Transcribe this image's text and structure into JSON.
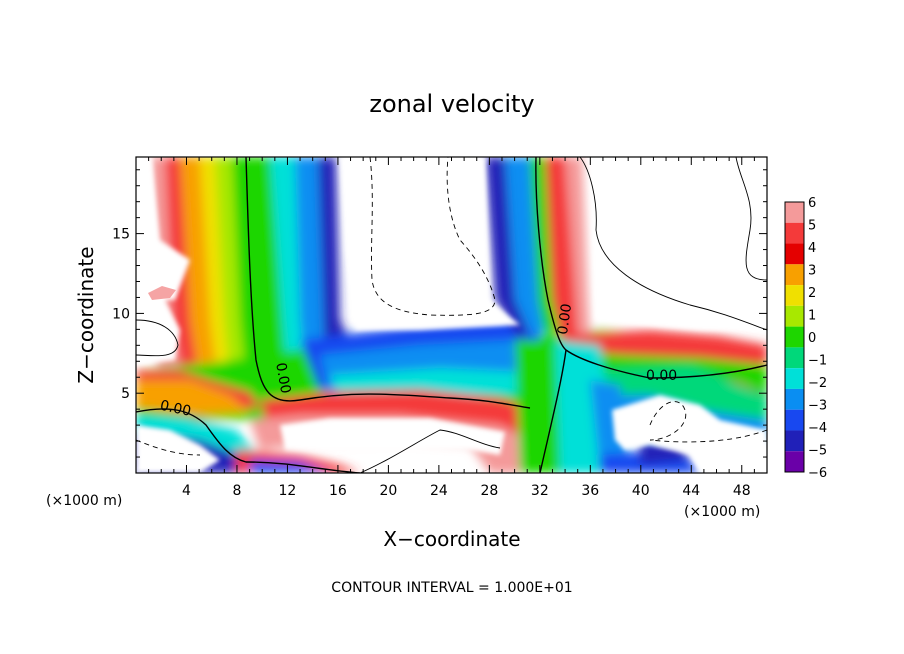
{
  "chart_data": {
    "type": "heatmap",
    "title": "zonal velocity",
    "xlabel": "X−coordinate",
    "ylabel": "Z−coordinate",
    "x_unit_left": "(×1000 m)",
    "x_unit_right": "(×1000 m)",
    "xlim": [
      0,
      50
    ],
    "ylim": [
      0,
      19.8
    ],
    "x_ticks": [
      4,
      8,
      12,
      16,
      20,
      24,
      28,
      32,
      36,
      40,
      44,
      48
    ],
    "y_ticks": [
      5,
      10,
      15
    ],
    "colorbar": {
      "levels": [
        6,
        5,
        4,
        3,
        2,
        1,
        0,
        -1,
        -2,
        -3,
        -4,
        -5,
        -6
      ],
      "labels": [
        "6",
        "5",
        "4",
        "3",
        "2",
        "1",
        "0",
        "−1",
        "−2",
        "−3",
        "−4",
        "−5",
        "−6"
      ],
      "colors": [
        "#f49a9a",
        "#f43a3a",
        "#e40000",
        "#f8a000",
        "#f0e000",
        "#a8e800",
        "#1ed600",
        "#00d87a",
        "#00e0d8",
        "#0a8ef2",
        "#1848f0",
        "#2020b8",
        "#6a00a8"
      ]
    },
    "contour_labels": [
      "0.00",
      "0.00",
      "0.00",
      "0.00"
    ],
    "grid": false,
    "legend": "colorbar-right"
  },
  "footer": "CONTOUR INTERVAL = 1.000E+01"
}
